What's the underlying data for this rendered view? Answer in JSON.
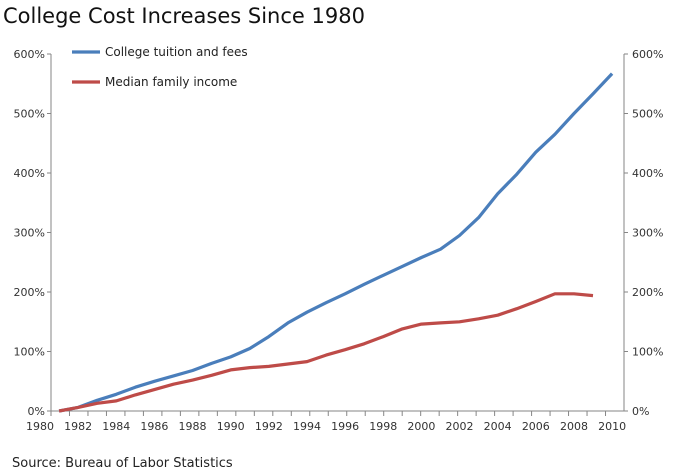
{
  "chart_data": {
    "type": "line",
    "title": "College Cost Increases Since 1980",
    "source": "Source: Bureau of Labor Statistics",
    "xlabel": "",
    "ylabel": "",
    "xlim": [
      1980,
      2010
    ],
    "ylim": [
      0,
      600
    ],
    "x_ticks": [
      "1980",
      "1982",
      "1984",
      "1986",
      "1988",
      "1990",
      "1992",
      "1994",
      "1996",
      "1998",
      "2000",
      "2002",
      "2004",
      "2006",
      "2008",
      "2010"
    ],
    "y_ticks": [
      "0%",
      "100%",
      "200%",
      "300%",
      "400%",
      "500%",
      "600%"
    ],
    "secondary_y_axis": true,
    "grid": false,
    "legend": "top-left",
    "series": [
      {
        "name": "College tuition and fees",
        "color": "#4a7ebb",
        "x": [
          1981,
          1982,
          1983,
          1984,
          1985,
          1986,
          1987,
          1988,
          1989,
          1990,
          1991,
          1992,
          1993,
          1994,
          1995,
          1996,
          1997,
          1998,
          1999,
          2000,
          2001,
          2002,
          2003,
          2004,
          2005,
          2006,
          2007,
          2008,
          2009,
          2010
        ],
        "values": [
          0,
          6,
          18,
          28,
          40,
          50,
          59,
          68,
          80,
          91,
          105,
          125,
          148,
          166,
          182,
          197,
          213,
          228,
          243,
          258,
          272,
          295,
          325,
          365,
          398,
          435,
          465,
          500,
          533,
          567
        ]
      },
      {
        "name": "Median family income",
        "color": "#be4b48",
        "x": [
          1981,
          1982,
          1983,
          1984,
          1985,
          1986,
          1987,
          1988,
          1989,
          1990,
          1991,
          1992,
          1993,
          1994,
          1995,
          1996,
          1997,
          1998,
          1999,
          2000,
          2001,
          2002,
          2003,
          2004,
          2005,
          2006,
          2007,
          2008,
          2009
        ],
        "values": [
          0,
          6,
          13,
          17,
          27,
          36,
          45,
          52,
          60,
          69,
          73,
          75,
          79,
          83,
          94,
          103,
          113,
          125,
          138,
          146,
          148,
          150,
          155,
          161,
          172,
          184,
          197,
          197,
          194
        ]
      }
    ]
  }
}
